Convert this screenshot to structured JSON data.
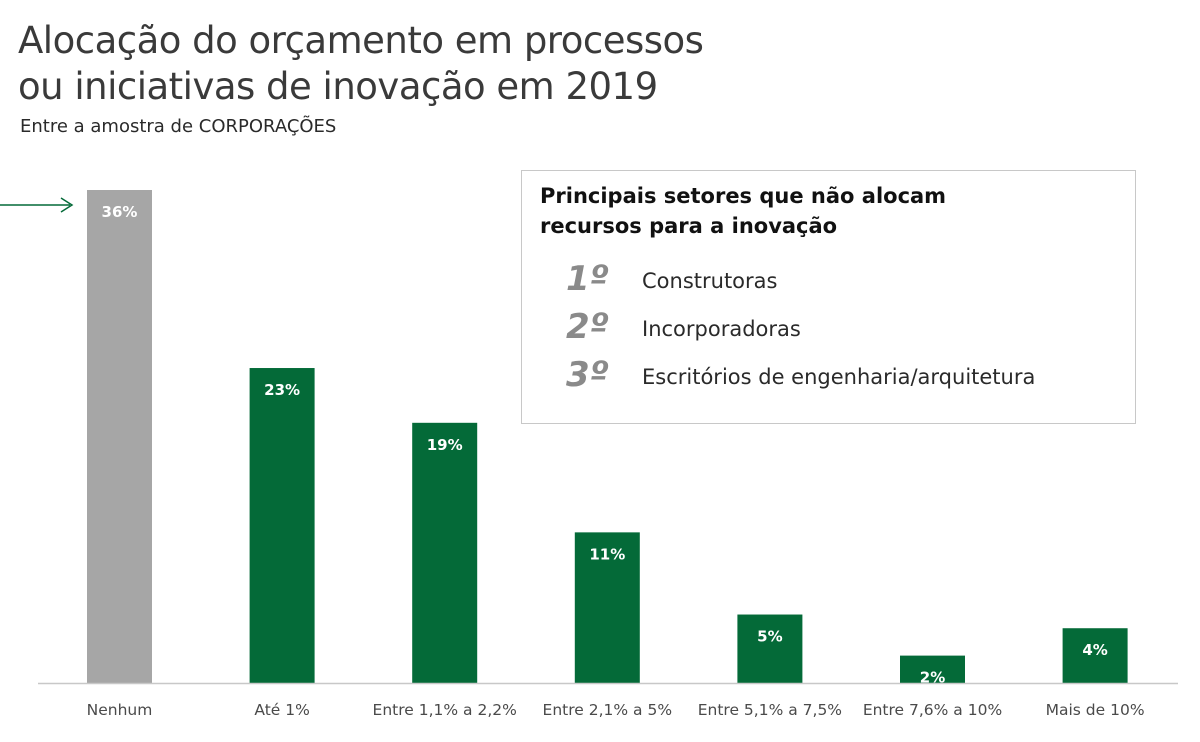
{
  "header": {
    "title_line1": "Alocação do orçamento em processos",
    "title_line2": "ou iniciativas de inovação em 2019",
    "subtitle": "Entre a amostra de CORPORAÇÕES"
  },
  "chart_data": {
    "type": "bar",
    "categories": [
      "Nenhum",
      "Até 1%",
      "Entre 1,1% a 2,2%",
      "Entre 2,1% a 5%",
      "Entre 5,1% a 7,5%",
      "Entre 7,6% a 10%",
      "Mais de 10%"
    ],
    "values": [
      36,
      23,
      19,
      11,
      5,
      2,
      4
    ],
    "data_labels": [
      "36%",
      "23%",
      "19%",
      "11%",
      "5%",
      "2%",
      "4%"
    ],
    "ylim": [
      0,
      36
    ],
    "highlight_index": 0,
    "highlight_color": "#a6a6a6",
    "bar_color": "#046a38",
    "arrow_color": "#046a38",
    "grid": false
  },
  "infobox": {
    "title_line1": "Principais setores que não alocam",
    "title_line2": "recursos para a inovação",
    "ranks": [
      {
        "rank": "1º",
        "name": "Construtoras"
      },
      {
        "rank": "2º",
        "name": "Incorporadoras"
      },
      {
        "rank": "3º",
        "name": "Escritórios de engenharia/arquitetura"
      }
    ]
  }
}
